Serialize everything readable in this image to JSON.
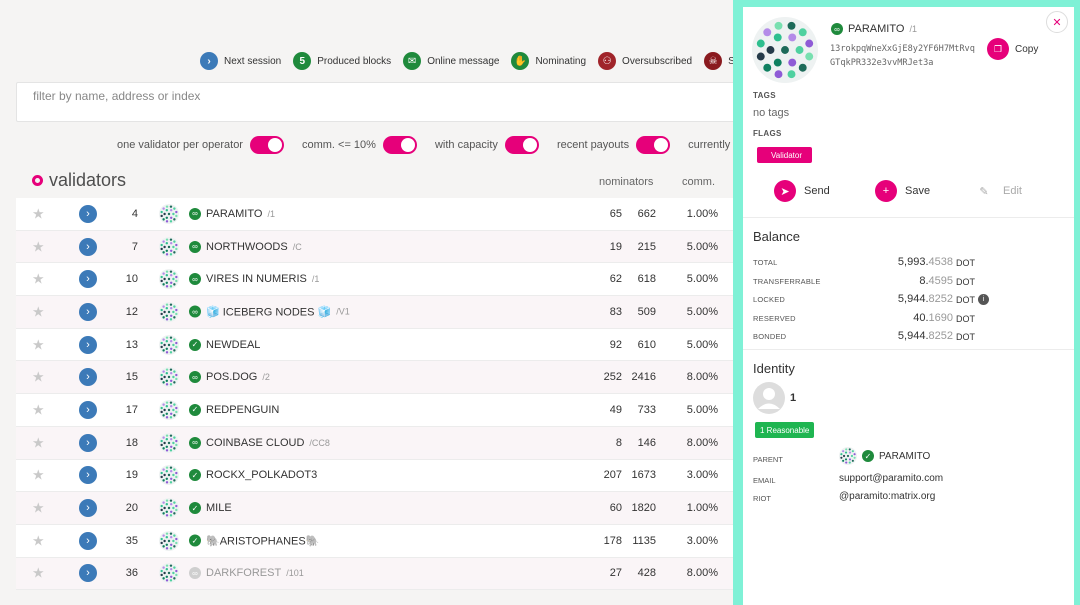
{
  "legend": [
    {
      "icon": "chevron-right-icon",
      "glyph": "›",
      "color": "blue",
      "label": "Next session"
    },
    {
      "icon": "count-badge",
      "glyph": "5",
      "color": "green",
      "label": "Produced blocks"
    },
    {
      "icon": "envelope-icon",
      "glyph": "✉",
      "color": "green",
      "label": "Online message"
    },
    {
      "icon": "hand-icon",
      "glyph": "✋",
      "color": "green",
      "label": "Nominating"
    },
    {
      "icon": "users-icon",
      "glyph": "⚇",
      "color": "red",
      "label": "Oversubscribed"
    },
    {
      "icon": "skull-icon",
      "glyph": "☠",
      "color": "darkred",
      "label": "Slas"
    }
  ],
  "filter": {
    "placeholder": "filter by name, address or index"
  },
  "toggles": [
    {
      "label": "one validator per operator",
      "on": true
    },
    {
      "label": "comm. <= 10%",
      "on": true
    },
    {
      "label": "with capacity",
      "on": true
    },
    {
      "label": "recent payouts",
      "on": true
    },
    {
      "label": "currently",
      "on": null
    }
  ],
  "validators": {
    "title": "validators",
    "columns": {
      "nominators": "nominators",
      "comm": "comm."
    },
    "rows": [
      {
        "index": "4",
        "name": "PARAMITO",
        "sub": "/1",
        "verified": "linked",
        "nom_a": "65",
        "nom_b": "662",
        "comm": "1.00%"
      },
      {
        "index": "7",
        "name": "NORTHWOODS",
        "sub": "/C",
        "verified": "linked",
        "nom_a": "19",
        "nom_b": "215",
        "comm": "5.00%"
      },
      {
        "index": "10",
        "name": "VIRES IN NUMERIS",
        "sub": "/1",
        "verified": "linked",
        "nom_a": "62",
        "nom_b": "618",
        "comm": "5.00%"
      },
      {
        "index": "12",
        "name": "🧊 ICEBERG NODES 🧊",
        "sub": "/V1",
        "verified": "linked",
        "nom_a": "83",
        "nom_b": "509",
        "comm": "5.00%"
      },
      {
        "index": "13",
        "name": "NEWDEAL",
        "sub": "",
        "verified": "check",
        "nom_a": "92",
        "nom_b": "610",
        "comm": "5.00%"
      },
      {
        "index": "15",
        "name": "POS.DOG",
        "sub": "/2",
        "verified": "linked",
        "nom_a": "252",
        "nom_b": "2416",
        "comm": "8.00%"
      },
      {
        "index": "17",
        "name": "REDPENGUIN",
        "sub": "",
        "verified": "check",
        "nom_a": "49",
        "nom_b": "733",
        "comm": "5.00%"
      },
      {
        "index": "18",
        "name": "COINBASE CLOUD",
        "sub": "/CC8",
        "verified": "linked",
        "nom_a": "8",
        "nom_b": "146",
        "comm": "8.00%"
      },
      {
        "index": "19",
        "name": "ROCKX_POLKADOT3",
        "sub": "",
        "verified": "check",
        "nom_a": "207",
        "nom_b": "1673",
        "comm": "3.00%"
      },
      {
        "index": "20",
        "name": "MILE",
        "sub": "",
        "verified": "check",
        "nom_a": "60",
        "nom_b": "1820",
        "comm": "1.00%"
      },
      {
        "index": "35",
        "name": "🐘ARISTOPHANES🐘",
        "sub": "",
        "verified": "check",
        "nom_a": "178",
        "nom_b": "1135",
        "comm": "3.00%"
      },
      {
        "index": "36",
        "name": "DARKFOREST",
        "sub": "/101",
        "verified": "grey",
        "nom_a": "27",
        "nom_b": "428",
        "comm": "8.00%"
      }
    ]
  },
  "panel": {
    "name": "PARAMITO",
    "name_sub": "/1",
    "address": "13rokpqWneXxGjE8y2YF6H7MtRvqGTqkPR332e3vvMRJet3a",
    "copy_label": "Copy",
    "tags_label": "TAGS",
    "tags_value": "no tags",
    "flags_label": "FLAGS",
    "flag": "Validator",
    "actions": {
      "send": "Send",
      "save": "Save",
      "edit": "Edit"
    },
    "balance": {
      "title": "Balance",
      "rows": [
        {
          "label": "TOTAL",
          "int": "5,993.",
          "dec": "4538",
          "unit": "DOT",
          "info": false
        },
        {
          "label": "TRANSFERRABLE",
          "int": "8.",
          "dec": "4595",
          "unit": "DOT",
          "info": false
        },
        {
          "label": "LOCKED",
          "int": "5,944.",
          "dec": "8252",
          "unit": "DOT",
          "info": true
        },
        {
          "label": "RESERVED",
          "int": "40.",
          "dec": "1690",
          "unit": "DOT",
          "info": false
        },
        {
          "label": "BONDED",
          "int": "5,944.",
          "dec": "8252",
          "unit": "DOT",
          "info": false
        }
      ]
    },
    "identity": {
      "title": "Identity",
      "judgements": "1",
      "judgement_label": "1 Reasonable",
      "parent_label": "PARENT",
      "parent_value": "PARAMITO",
      "email_label": "EMAIL",
      "email_value": "support@paramito.com",
      "riot_label": "RIOT",
      "riot_value": "@paramito:matrix.org"
    }
  }
}
